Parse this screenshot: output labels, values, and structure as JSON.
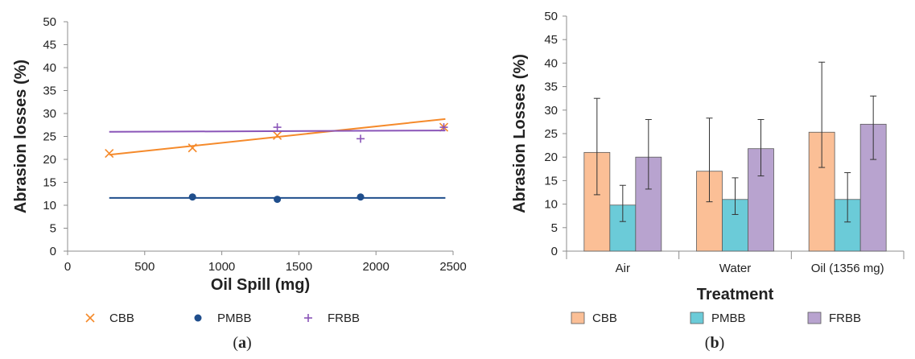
{
  "chart_data": [
    {
      "type": "scatter",
      "panel_label": "a",
      "xlabel": "Oil Spill (mg)",
      "ylabel": "Abrasion losses (%)",
      "xlim": [
        0,
        2500
      ],
      "ylim": [
        0,
        50
      ],
      "x_ticks": [
        "0",
        "500",
        "1000",
        "1500",
        "2000",
        "2500"
      ],
      "y_ticks": [
        "0",
        "5",
        "10",
        "15",
        "20",
        "25",
        "30",
        "35",
        "40",
        "45",
        "50"
      ],
      "grid": false,
      "legend_position": "bottom",
      "series": [
        {
          "name": "CBB",
          "marker": "x",
          "color": "#f58a2b",
          "points": [
            [
              270,
              21.3
            ],
            [
              810,
              22.5
            ],
            [
              1360,
              25.2
            ],
            [
              2440,
              27
            ]
          ],
          "trendline": [
            [
              270,
              21.0
            ],
            [
              2450,
              28.8
            ]
          ]
        },
        {
          "name": "PMBB",
          "marker": "circle",
          "color": "#1f4e8c",
          "points": [
            [
              810,
              11.8
            ],
            [
              1360,
              11.3
            ],
            [
              1900,
              11.8
            ]
          ],
          "trendline": [
            [
              270,
              11.6
            ],
            [
              2450,
              11.6
            ]
          ]
        },
        {
          "name": "FRBB",
          "marker": "plus",
          "color": "#8a55b8",
          "points": [
            [
              1360,
              27
            ],
            [
              1900,
              24.5
            ],
            [
              2440,
              27
            ]
          ],
          "trendline": [
            [
              270,
              26.0
            ],
            [
              2450,
              26.3
            ]
          ]
        }
      ]
    },
    {
      "type": "bar",
      "panel_label": "b",
      "xlabel": "Treatment",
      "ylabel": "Abrasion Losses (%)",
      "ylim": [
        0,
        50
      ],
      "y_ticks": [
        "0",
        "5",
        "10",
        "15",
        "20",
        "25",
        "30",
        "35",
        "40",
        "45",
        "50"
      ],
      "categories": [
        "Air",
        "Water",
        "Oil (1356 mg)"
      ],
      "grid": false,
      "legend_position": "bottom",
      "series": [
        {
          "name": "CBB",
          "color": "#fbbf96",
          "values": [
            21.0,
            17.0,
            25.3
          ],
          "error_low": [
            12.0,
            10.5,
            17.8
          ],
          "error_high": [
            32.5,
            28.3,
            40.2
          ]
        },
        {
          "name": "PMBB",
          "color": "#6bcbd8",
          "values": [
            9.8,
            11.0,
            11.0
          ],
          "error_low": [
            6.3,
            7.8,
            6.2
          ],
          "error_high": [
            14.0,
            15.6,
            16.7
          ]
        },
        {
          "name": "FRBB",
          "color": "#b8a3cf",
          "values": [
            20.0,
            21.8,
            27.0
          ],
          "error_low": [
            13.2,
            16.0,
            19.5
          ],
          "error_high": [
            28.0,
            28.0,
            33.0
          ]
        }
      ]
    }
  ]
}
